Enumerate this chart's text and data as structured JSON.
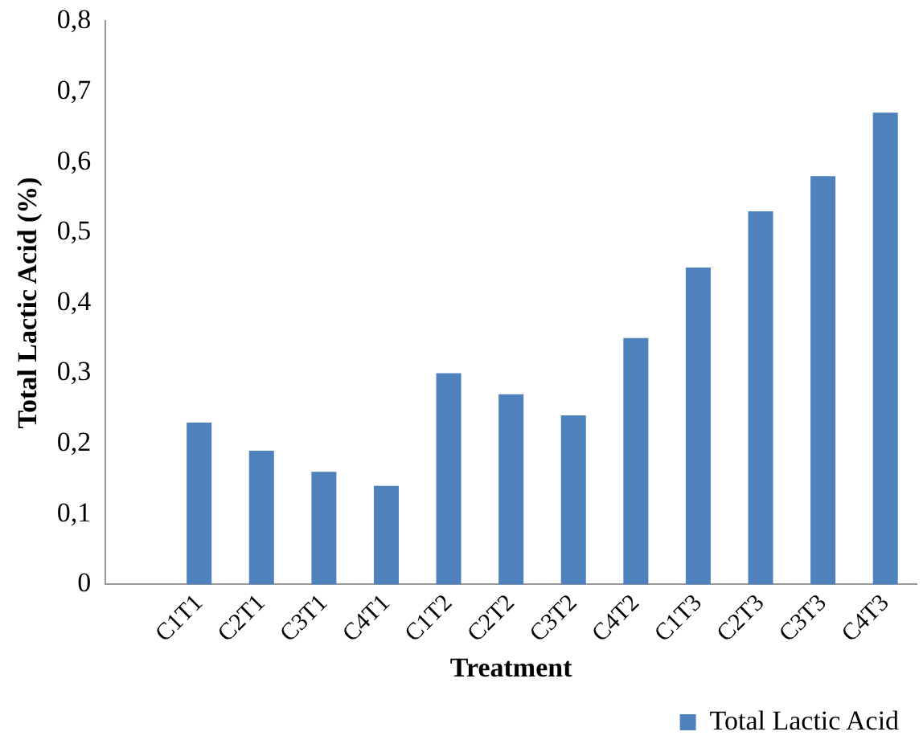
{
  "chart_data": {
    "type": "bar",
    "xlabel": "Treatment",
    "ylabel": "Total Lactic Acid (%)",
    "categories": [
      null,
      "C1T1",
      "C2T1",
      "C3T1",
      "C4T1",
      "C1T2",
      "C2T2",
      "C3T2",
      "C4T2",
      "C1T3",
      "C2T3",
      "C3T3",
      "C4T3"
    ],
    "series": [
      {
        "name": "Total Lactic Acid",
        "color": "#4f81bd",
        "values": [
          null,
          0.23,
          0.19,
          0.16,
          0.14,
          0.3,
          0.27,
          0.24,
          0.35,
          0.45,
          0.53,
          0.58,
          0.67
        ]
      }
    ],
    "ylim": [
      0,
      0.8
    ],
    "yticks": [
      0,
      {
        "value": 0.1,
        "label": "0,1"
      },
      {
        "value": 0.2,
        "label": "0,2"
      },
      {
        "value": 0.3,
        "label": "0,3"
      },
      {
        "value": 0.4,
        "label": "0,4"
      },
      {
        "value": 0.5,
        "label": "0,5"
      },
      {
        "value": 0.6,
        "label": "0,6"
      },
      {
        "value": 0.7,
        "label": "0,7"
      },
      {
        "value": 0.8,
        "label": "0,8"
      }
    ],
    "grid": false,
    "legend": "bottom right"
  }
}
